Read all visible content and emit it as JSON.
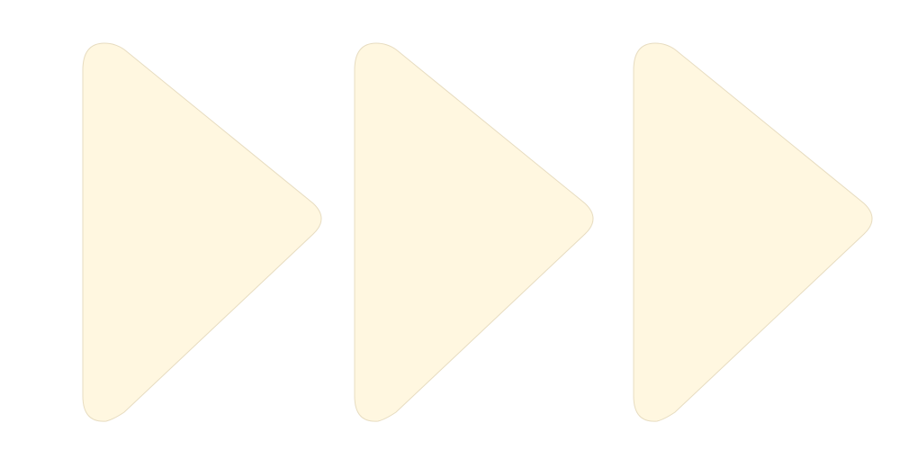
{
  "icon": {
    "name": "fast-forward-icon",
    "fill_color": "#fff7e0",
    "stroke_color": "#e7dcc0",
    "arrows": [
      {
        "name": "play-arrow-icon"
      },
      {
        "name": "play-arrow-icon"
      },
      {
        "name": "play-arrow-icon"
      }
    ]
  }
}
